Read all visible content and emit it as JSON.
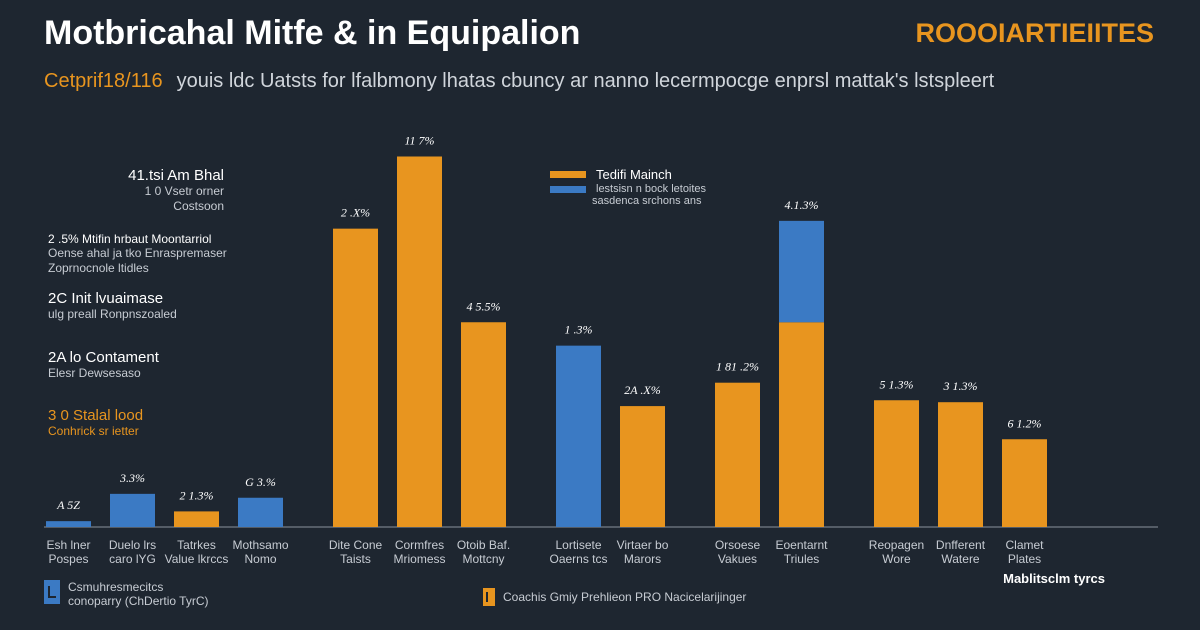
{
  "header": {
    "title": "Motbricahal Mitfe & in Equipalion",
    "brand": "ROOOIARTIEIITES",
    "subtitle_lead": "Cetprif18/116",
    "subtitle": "youis ldc Uatsts for lfalbmony lhatas cbuncy ar nanno lecermpocge enprsl mattak's lstspleert"
  },
  "left_labels": [
    {
      "head": "41.tsi Am Bhal",
      "sub": [
        "1 0 Vsetr orner",
        "Costsoon"
      ],
      "wide": false,
      "accent": false
    },
    {
      "head": "2 .5% Mtifin hrbaut Moontarriol",
      "sub": [
        "Oense ahal ja tko Enraspremaser",
        "Zoprnocnole ltidles"
      ],
      "wide": true,
      "accent": false
    },
    {
      "head": "2C Init lvuaimase",
      "sub": [
        "ulg preall Ronpnszoaled"
      ],
      "wide": false,
      "accent": false
    },
    {
      "head": "2A lo Contament",
      "sub": [
        "Elesr Dewsesaso"
      ],
      "wide": false,
      "accent": false
    },
    {
      "head": "3 0 Stalal lood",
      "sub": [
        "Conhrick sr ietter"
      ],
      "wide": false,
      "accent": true
    }
  ],
  "legend": {
    "items": [
      {
        "name": "Tedifi Mainch",
        "color": "#e8951f"
      },
      {
        "name": "",
        "color": "#3b7ac4"
      }
    ],
    "note": [
      "lestsisn n bock letoites",
      "sasdenca srchons ans"
    ]
  },
  "chart_data": {
    "type": "bar",
    "colors": {
      "orange": "#e8951f",
      "blue": "#3b7ac4",
      "axis": "#8a929c",
      "label": "#ffffff"
    },
    "ylim": [
      0,
      100
    ],
    "bars": [
      {
        "label": [
          "Esh lner",
          "Pospes"
        ],
        "values": [
          {
            "v": 1.5,
            "c": "blue"
          }
        ],
        "data_label": "A 5Z",
        "group": 0
      },
      {
        "label": [
          "Duelo lrs",
          "caro lYG"
        ],
        "values": [
          {
            "v": 8.5,
            "c": "blue"
          }
        ],
        "data_label": "3.3%",
        "group": 0
      },
      {
        "label": [
          "Tatrkes",
          "Value lkrccs"
        ],
        "values": [
          {
            "v": 4.0,
            "c": "orange"
          }
        ],
        "data_label": "2 1.3%",
        "group": 0
      },
      {
        "label": [
          "Mothsamo",
          "Nomo"
        ],
        "values": [
          {
            "v": 7.5,
            "c": "blue"
          }
        ],
        "data_label": "G 3.%",
        "group": 0
      },
      {
        "label": [
          "Dite Cone",
          "Taists"
        ],
        "values": [
          {
            "v": 76.5,
            "c": "orange"
          }
        ],
        "data_label": "2 .X%",
        "group": 1
      },
      {
        "label": [
          "Cormfres",
          "Mriomess"
        ],
        "values": [
          {
            "v": 95.0,
            "c": "orange"
          }
        ],
        "data_label": "11 7%",
        "group": 1
      },
      {
        "label": [
          "Otoib Baf.",
          "Mottcny"
        ],
        "values": [
          {
            "v": 52.5,
            "c": "orange"
          }
        ],
        "data_label": "4 5.5%",
        "group": 1
      },
      {
        "label": [
          "Lortisete",
          "Oaerns tcs"
        ],
        "values": [
          {
            "v": 46.5,
            "c": "blue"
          }
        ],
        "data_label": "1 .3%",
        "group": 2
      },
      {
        "label": [
          "Virtaer bo",
          "Marors"
        ],
        "values": [
          {
            "v": 31.0,
            "c": "orange"
          }
        ],
        "data_label": "2A .X%",
        "group": 2
      },
      {
        "label": [
          "Orsoese",
          "Vakues"
        ],
        "values": [
          {
            "v": 37.0,
            "c": "orange"
          }
        ],
        "data_label": "1 81 .2%",
        "group": 3
      },
      {
        "label": [
          "Eoentarnt",
          "Triules"
        ],
        "values": [
          {
            "v": 52.5,
            "c": "orange"
          },
          {
            "v": 26.0,
            "c": "blue"
          }
        ],
        "data_label": "4.1.3%",
        "group": 3
      },
      {
        "label": [
          "Reopagen",
          "Wore"
        ],
        "values": [
          {
            "v": 32.5,
            "c": "orange"
          }
        ],
        "data_label": "5 1.3%",
        "group": 4
      },
      {
        "label": [
          "Dnfferent",
          "Watere"
        ],
        "values": [
          {
            "v": 32.0,
            "c": "orange"
          }
        ],
        "data_label": "3 1.3%",
        "group": 4
      },
      {
        "label": [
          "Clamet",
          "Plates"
        ],
        "values": [
          {
            "v": 22.5,
            "c": "orange"
          }
        ],
        "data_label": "6 1.2%",
        "group": 4
      }
    ],
    "x_caption": "Mablitsclm tyrcs"
  },
  "footer": {
    "left": [
      "Csmuhresmecitcs",
      "conoparry (ChDertio TyrC)"
    ],
    "mid": "Coachis Gmiy Prehlieon PRO Nacicelarijinger"
  }
}
